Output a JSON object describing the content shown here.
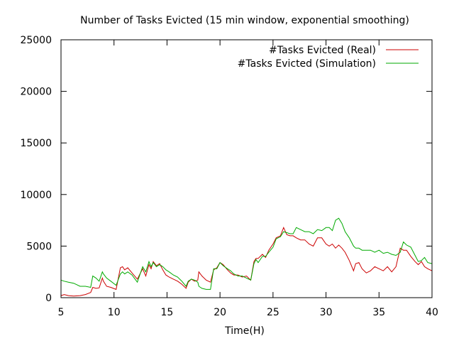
{
  "chart_data": {
    "type": "line",
    "title": "Number of Tasks Evicted (15 min window, exponential smoothing)",
    "xlabel": "Time(H)",
    "ylabel": "",
    "xlim": [
      5,
      40
    ],
    "ylim": [
      0,
      25000
    ],
    "x_ticks": [
      5,
      10,
      15,
      20,
      25,
      30,
      35,
      40
    ],
    "y_ticks": [
      0,
      5000,
      10000,
      15000,
      20000,
      25000
    ],
    "x_tick_labels": [
      "5",
      "10",
      "15",
      "20",
      "25",
      "30",
      "35",
      "40"
    ],
    "y_tick_labels": [
      "0",
      "5000",
      "10000",
      "15000",
      "20000",
      "25000"
    ],
    "grid": false,
    "legend_position": "top-right",
    "series": [
      {
        "name": "#Tasks Evicted (Real)",
        "color": "#cc0000",
        "x": [
          5.0,
          5.3,
          5.7,
          6.2,
          6.8,
          7.3,
          7.8,
          8.0,
          8.3,
          8.6,
          8.9,
          9.0,
          9.3,
          9.7,
          10.2,
          10.6,
          10.8,
          11.0,
          11.3,
          11.7,
          12.2,
          12.7,
          13.0,
          13.3,
          13.5,
          13.7,
          14.0,
          14.3,
          14.6,
          14.9,
          15.2,
          15.6,
          16.0,
          16.4,
          16.8,
          17.0,
          17.3,
          17.6,
          17.9,
          18.0,
          18.3,
          18.7,
          19.1,
          19.4,
          19.7,
          20.0,
          20.3,
          20.7,
          21.0,
          21.3,
          21.7,
          22.1,
          22.5,
          22.9,
          23.2,
          23.4,
          23.6,
          24.0,
          24.3,
          24.6,
          25.0,
          25.3,
          25.7,
          26.0,
          26.3,
          26.6,
          26.9,
          27.2,
          27.6,
          28.0,
          28.4,
          28.8,
          29.2,
          29.6,
          30.0,
          30.3,
          30.6,
          30.9,
          31.2,
          31.5,
          31.8,
          32.2,
          32.6,
          32.8,
          33.1,
          33.4,
          33.8,
          34.2,
          34.6,
          35.0,
          35.4,
          35.8,
          36.2,
          36.6,
          37.0,
          37.3,
          37.6,
          38.0,
          38.4,
          38.7,
          39.0,
          39.3,
          39.6,
          40.0
        ],
        "values": [
          200,
          300,
          200,
          150,
          200,
          300,
          500,
          1000,
          900,
          950,
          1900,
          1600,
          1100,
          1000,
          800,
          2900,
          3000,
          2700,
          2900,
          2400,
          1800,
          2800,
          2100,
          3200,
          2800,
          3500,
          3100,
          3300,
          2700,
          2200,
          2000,
          1800,
          1600,
          1300,
          900,
          1500,
          1800,
          1600,
          1700,
          2500,
          2100,
          1700,
          1500,
          2700,
          2900,
          3400,
          3200,
          2700,
          2400,
          2200,
          2200,
          2000,
          2100,
          1700,
          3500,
          3800,
          3800,
          4200,
          3900,
          4600,
          5200,
          5800,
          6000,
          6800,
          6100,
          6000,
          6000,
          5800,
          5600,
          5600,
          5200,
          5000,
          5800,
          5800,
          5200,
          5000,
          5200,
          4800,
          5100,
          4800,
          4400,
          3600,
          2600,
          3300,
          3400,
          2800,
          2400,
          2600,
          3000,
          2800,
          2600,
          3000,
          2500,
          3000,
          4800,
          4600,
          4600,
          4000,
          3500,
          3200,
          3500,
          3000,
          2800,
          2600
        ]
      },
      {
        "name": "#Tasks Evicted (Simulation)",
        "color": "#00aa00",
        "x": [
          5.0,
          5.3,
          5.7,
          6.2,
          6.8,
          7.3,
          7.8,
          8.0,
          8.3,
          8.6,
          8.9,
          9.0,
          9.3,
          9.7,
          10.2,
          10.6,
          10.8,
          11.0,
          11.3,
          11.7,
          12.2,
          12.7,
          13.0,
          13.3,
          13.5,
          13.7,
          14.0,
          14.3,
          14.6,
          14.9,
          15.2,
          15.6,
          16.0,
          16.4,
          16.8,
          17.0,
          17.3,
          17.6,
          17.9,
          18.0,
          18.3,
          18.7,
          19.1,
          19.4,
          19.7,
          20.0,
          20.3,
          20.7,
          21.0,
          21.3,
          21.7,
          22.1,
          22.5,
          22.9,
          23.2,
          23.4,
          23.6,
          24.0,
          24.3,
          24.6,
          25.0,
          25.3,
          25.7,
          26.0,
          26.3,
          26.6,
          26.9,
          27.2,
          27.6,
          28.0,
          28.4,
          28.8,
          29.2,
          29.6,
          30.0,
          30.3,
          30.6,
          30.9,
          31.2,
          31.5,
          31.8,
          32.2,
          32.6,
          32.8,
          33.1,
          33.4,
          33.8,
          34.2,
          34.6,
          35.0,
          35.4,
          35.8,
          36.2,
          36.6,
          37.0,
          37.3,
          37.6,
          38.0,
          38.4,
          38.7,
          39.0,
          39.3,
          39.6,
          40.0
        ],
        "values": [
          1700,
          1600,
          1500,
          1400,
          1100,
          1100,
          1000,
          2100,
          1900,
          1600,
          2500,
          2300,
          1900,
          1600,
          1200,
          2300,
          2500,
          2300,
          2500,
          2200,
          1500,
          3000,
          2500,
          3500,
          3000,
          3400,
          3000,
          3200,
          3000,
          2700,
          2500,
          2200,
          2000,
          1600,
          1100,
          1600,
          1800,
          1700,
          1500,
          1100,
          900,
          800,
          800,
          2800,
          2800,
          3400,
          3100,
          2800,
          2600,
          2300,
          2100,
          2100,
          1900,
          1700,
          3300,
          3700,
          3400,
          4000,
          4000,
          4400,
          4900,
          5700,
          5900,
          6400,
          6300,
          6200,
          6200,
          6800,
          6600,
          6400,
          6400,
          6200,
          6600,
          6500,
          6800,
          6800,
          6500,
          7500,
          7700,
          7200,
          6400,
          5800,
          5000,
          4800,
          4800,
          4600,
          4600,
          4600,
          4400,
          4600,
          4300,
          4400,
          4200,
          4100,
          4400,
          5400,
          5100,
          4900,
          4100,
          3500,
          3600,
          3900,
          3400,
          3300
        ]
      }
    ]
  }
}
